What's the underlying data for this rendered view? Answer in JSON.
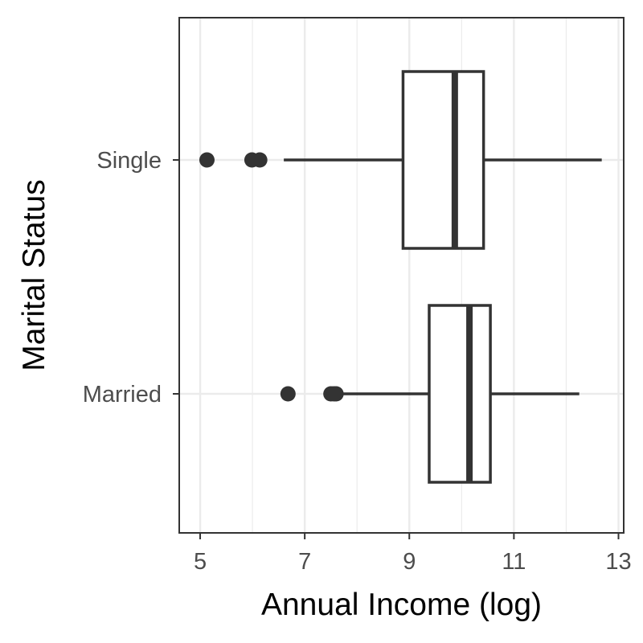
{
  "chart_data": {
    "type": "boxplot",
    "orientation": "horizontal",
    "title": "",
    "xlabel": "Annual Income (log)",
    "ylabel": "Marital Status",
    "xlim": [
      4.6,
      13.1
    ],
    "x_ticks": [
      5,
      7,
      9,
      11,
      13
    ],
    "x_tick_labels": [
      "5",
      "7",
      "9",
      "11",
      "13"
    ],
    "grid": true,
    "legend": "none",
    "colors": {
      "box_stroke": "#333333",
      "box_fill": "#ffffff",
      "grid": "#ebebeb",
      "panel_border": "#333333",
      "tick_label": "#4d4d4d"
    },
    "categories": [
      "Single",
      "Married"
    ],
    "boxes": [
      {
        "category": "Single",
        "whisker_low": 6.6,
        "q1": 8.88,
        "median": 9.87,
        "q3": 10.42,
        "whisker_high": 12.68,
        "outliers": [
          5.13,
          5.99,
          6.14
        ]
      },
      {
        "category": "Married",
        "whisker_low": 7.62,
        "q1": 9.38,
        "median": 10.15,
        "q3": 10.55,
        "whisker_high": 12.25,
        "outliers": [
          6.68,
          7.5,
          7.56,
          7.6
        ]
      }
    ]
  }
}
